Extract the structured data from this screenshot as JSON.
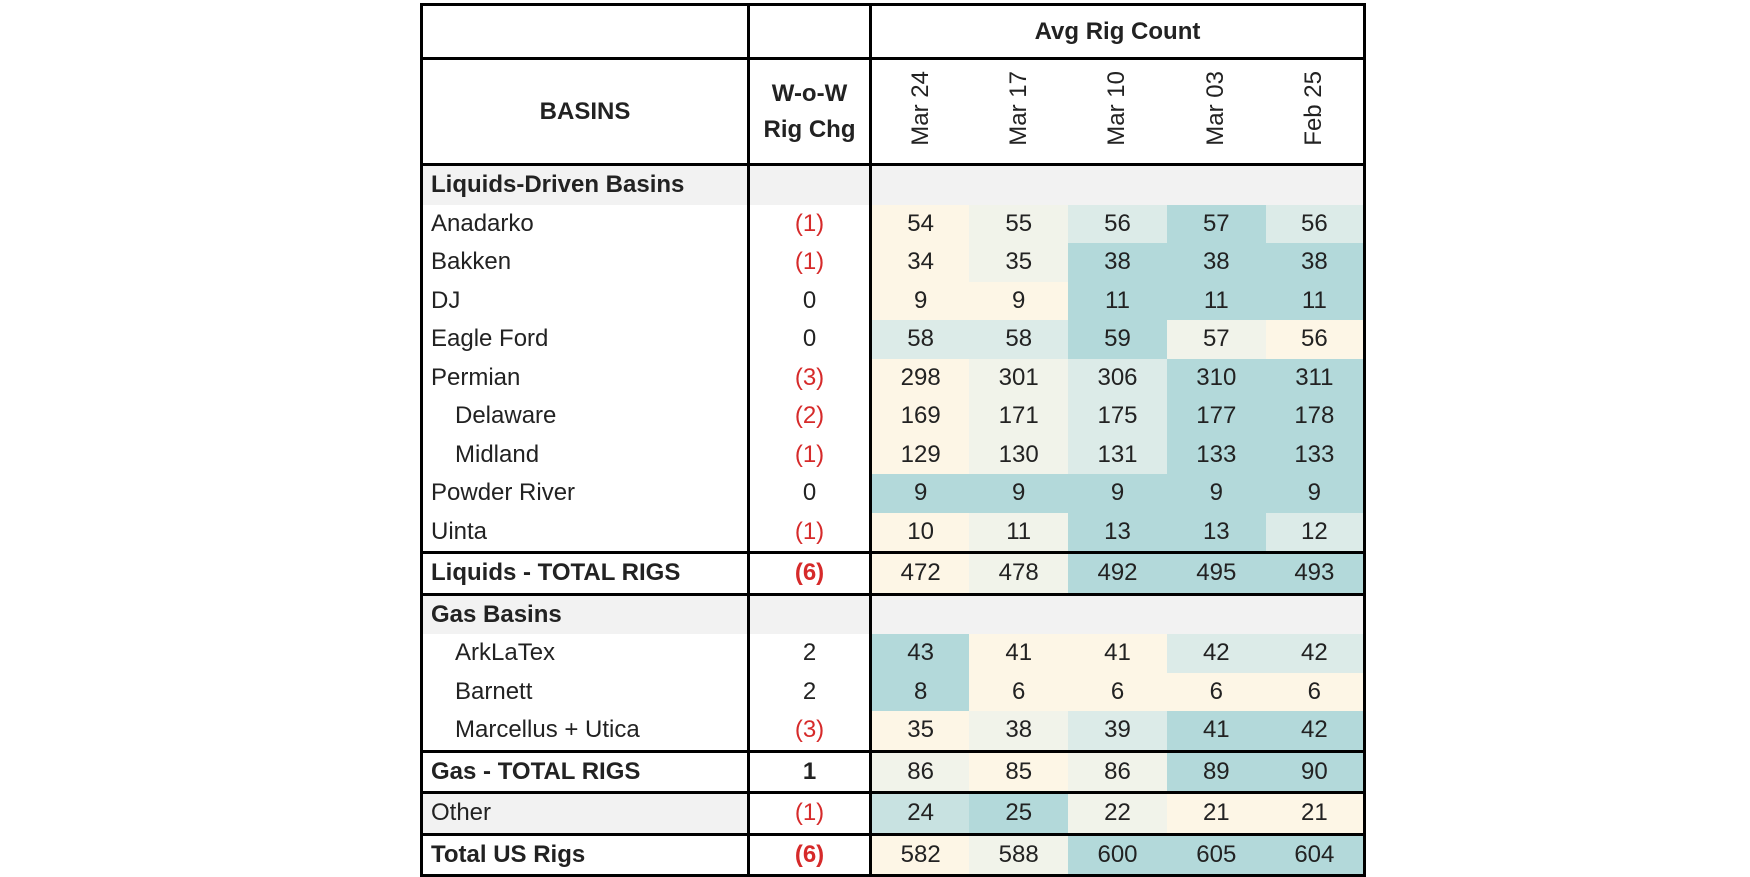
{
  "table": {
    "header": {
      "avg_label": "Avg Rig Count",
      "basins_label": "BASINS",
      "chg_label_1": "W-o-W",
      "chg_label_2": "Rig Chg",
      "weeks": [
        "Mar 24",
        "Mar 17",
        "Mar 10",
        "Mar 03",
        "Feb 25"
      ]
    },
    "colors": {
      "low": "#fdf6e6",
      "mid_low": "#f1f3ea",
      "mid": "#dcebe8",
      "mid_high": "#c8e2e1",
      "high": "#b3d9da",
      "negative_text": "#d62a2a",
      "section_bg": "#f2f2f2"
    },
    "liquids": {
      "section_label": "Liquids-Driven Basins",
      "rows": [
        {
          "name": "Anadarko",
          "chg": "(1)",
          "neg": true,
          "indent": false,
          "values": [
            "54",
            "55",
            "56",
            "57",
            "56"
          ],
          "shades": [
            "low",
            "mid_low",
            "mid",
            "high",
            "mid"
          ]
        },
        {
          "name": "Bakken",
          "chg": "(1)",
          "neg": true,
          "indent": false,
          "values": [
            "34",
            "35",
            "38",
            "38",
            "38"
          ],
          "shades": [
            "low",
            "mid_low",
            "high",
            "high",
            "high"
          ]
        },
        {
          "name": "DJ",
          "chg": "0",
          "neg": false,
          "indent": false,
          "values": [
            "9",
            "9",
            "11",
            "11",
            "11"
          ],
          "shades": [
            "low",
            "low",
            "high",
            "high",
            "high"
          ]
        },
        {
          "name": "Eagle Ford",
          "chg": "0",
          "neg": false,
          "indent": false,
          "values": [
            "58",
            "58",
            "59",
            "57",
            "56"
          ],
          "shades": [
            "mid",
            "mid",
            "high",
            "mid_low",
            "low"
          ]
        },
        {
          "name": "Permian",
          "chg": "(3)",
          "neg": true,
          "indent": false,
          "values": [
            "298",
            "301",
            "306",
            "310",
            "311"
          ],
          "shades": [
            "low",
            "mid_low",
            "mid",
            "high",
            "high"
          ]
        },
        {
          "name": "Delaware",
          "chg": "(2)",
          "neg": true,
          "indent": true,
          "values": [
            "169",
            "171",
            "175",
            "177",
            "178"
          ],
          "shades": [
            "low",
            "mid_low",
            "mid",
            "high",
            "high"
          ]
        },
        {
          "name": "Midland",
          "chg": "(1)",
          "neg": true,
          "indent": true,
          "values": [
            "129",
            "130",
            "131",
            "133",
            "133"
          ],
          "shades": [
            "low",
            "mid_low",
            "mid",
            "high",
            "high"
          ]
        },
        {
          "name": "Powder River",
          "chg": "0",
          "neg": false,
          "indent": false,
          "values": [
            "9",
            "9",
            "9",
            "9",
            "9"
          ],
          "shades": [
            "high",
            "high",
            "high",
            "high",
            "high"
          ]
        },
        {
          "name": "Uinta",
          "chg": "(1)",
          "neg": true,
          "indent": false,
          "values": [
            "10",
            "11",
            "13",
            "13",
            "12"
          ],
          "shades": [
            "low",
            "mid_low",
            "high",
            "high",
            "mid"
          ]
        }
      ],
      "total": {
        "name": "Liquids - TOTAL RIGS",
        "chg": "(6)",
        "neg": true,
        "values": [
          "472",
          "478",
          "492",
          "495",
          "493"
        ],
        "shades": [
          "low",
          "mid_low",
          "high",
          "high",
          "high"
        ]
      }
    },
    "gas": {
      "section_label": "Gas Basins",
      "rows": [
        {
          "name": "ArkLaTex",
          "chg": "2",
          "neg": false,
          "indent": true,
          "values": [
            "43",
            "41",
            "41",
            "42",
            "42"
          ],
          "shades": [
            "high",
            "low",
            "low",
            "mid",
            "mid"
          ]
        },
        {
          "name": "Barnett",
          "chg": "2",
          "neg": false,
          "indent": true,
          "values": [
            "8",
            "6",
            "6",
            "6",
            "6"
          ],
          "shades": [
            "high",
            "low",
            "low",
            "low",
            "low"
          ]
        },
        {
          "name": "Marcellus + Utica",
          "chg": "(3)",
          "neg": true,
          "indent": true,
          "values": [
            "35",
            "38",
            "39",
            "41",
            "42"
          ],
          "shades": [
            "low",
            "mid_low",
            "mid",
            "high",
            "high"
          ]
        }
      ],
      "total": {
        "name": "Gas - TOTAL RIGS",
        "chg": "1",
        "neg": false,
        "values": [
          "86",
          "85",
          "86",
          "89",
          "90"
        ],
        "shades": [
          "mid_low",
          "low",
          "mid_low",
          "high",
          "high"
        ]
      }
    },
    "other": {
      "name": "Other",
      "chg": "(1)",
      "neg": true,
      "values": [
        "24",
        "25",
        "22",
        "21",
        "21"
      ],
      "shades": [
        "mid_high",
        "high",
        "mid_low",
        "low",
        "low"
      ]
    },
    "grand_total": {
      "name": "Total US Rigs",
      "chg": "(6)",
      "neg": true,
      "values": [
        "582",
        "588",
        "600",
        "605",
        "604"
      ],
      "shades": [
        "low",
        "mid_low",
        "high",
        "high",
        "high"
      ]
    }
  }
}
